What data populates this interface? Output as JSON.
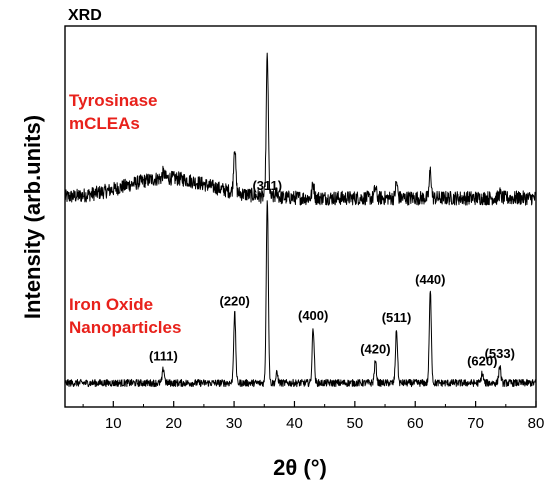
{
  "chart_data": {
    "type": "line",
    "title": "XRD",
    "xlabel": "2θ (°)",
    "ylabel": "Intensity (arb.units)",
    "xlim": [
      2,
      80
    ],
    "xticks": [
      10,
      20,
      30,
      40,
      50,
      60,
      70,
      80
    ],
    "y_ticks_shown": false,
    "grid": false,
    "series": [
      {
        "name": "Tyrosinase mCLEAs",
        "label_lines": [
          "Tyrosinase",
          "mCLEAs"
        ],
        "label_color": "#e8211b",
        "baseline": 68,
        "hump": {
          "center": 19,
          "width": 7,
          "height": 14
        },
        "noise": 5,
        "peaks": [
          {
            "x": 18.3,
            "h": 4
          },
          {
            "x": 30.1,
            "h": 33
          },
          {
            "x": 35.5,
            "h": 100
          },
          {
            "x": 37.1,
            "h": 4
          },
          {
            "x": 43.1,
            "h": 10
          },
          {
            "x": 53.4,
            "h": 7
          },
          {
            "x": 56.9,
            "h": 11
          },
          {
            "x": 62.5,
            "h": 19
          },
          {
            "x": 74.0,
            "h": 3
          }
        ]
      },
      {
        "name": "Iron Oxide Nanoparticles",
        "label_lines": [
          "Iron Oxide",
          "Nanoparticles"
        ],
        "label_color": "#e8211b",
        "baseline": 5,
        "noise": 1.5,
        "peaks": [
          {
            "x": 18.3,
            "h": 6,
            "label": "(111)"
          },
          {
            "x": 30.1,
            "h": 29,
            "label": "(220)"
          },
          {
            "x": 35.5,
            "h": 77,
            "label": "(311)"
          },
          {
            "x": 37.1,
            "h": 4
          },
          {
            "x": 43.1,
            "h": 23,
            "label": "(400)"
          },
          {
            "x": 53.4,
            "h": 9,
            "label": "(420)"
          },
          {
            "x": 56.9,
            "h": 22,
            "label": "(511)"
          },
          {
            "x": 62.5,
            "h": 38,
            "label": "(440)"
          },
          {
            "x": 71.1,
            "h": 4,
            "label": "(620)"
          },
          {
            "x": 74.0,
            "h": 7,
            "label": "(533)"
          }
        ]
      }
    ]
  }
}
